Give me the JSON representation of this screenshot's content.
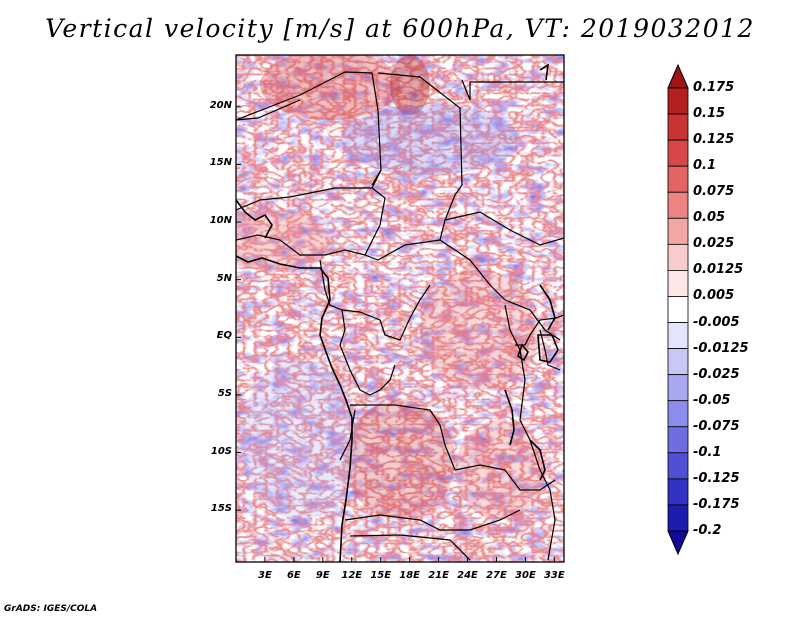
{
  "title": "Vertical velocity [m/s] at 600hPa, VT: 2019032012",
  "credit": "GrADS: IGES/COLA",
  "map": {
    "variable": "Vertical velocity",
    "units": "m/s",
    "level": "600hPa",
    "valid_time": "2019032012",
    "lat_range": [
      -19.5,
      24.5
    ],
    "lon_range": [
      0,
      34
    ],
    "lat_labels": [
      {
        "lat": 20,
        "text": "20N"
      },
      {
        "lat": 15,
        "text": "15N"
      },
      {
        "lat": 10,
        "text": "10N"
      },
      {
        "lat": 5,
        "text": "5N"
      },
      {
        "lat": 0,
        "text": "EQ"
      },
      {
        "lat": -5,
        "text": "5S"
      },
      {
        "lat": -10,
        "text": "10S"
      },
      {
        "lat": -15,
        "text": "15S"
      }
    ],
    "lon_labels": [
      {
        "lon": 3,
        "text": "3E"
      },
      {
        "lon": 6,
        "text": "6E"
      },
      {
        "lon": 9,
        "text": "9E"
      },
      {
        "lon": 12,
        "text": "12E"
      },
      {
        "lon": 15,
        "text": "15E"
      },
      {
        "lon": 18,
        "text": "18E"
      },
      {
        "lon": 21,
        "text": "21E"
      },
      {
        "lon": 24,
        "text": "24E"
      },
      {
        "lon": 27,
        "text": "27E"
      },
      {
        "lon": 30,
        "text": "30E"
      },
      {
        "lon": 33,
        "text": "33E"
      }
    ]
  },
  "colorbar": {
    "labels": [
      "0.175",
      "0.15",
      "0.125",
      "0.1",
      "0.075",
      "0.05",
      "0.025",
      "0.0125",
      "0.005",
      "-0.005",
      "-0.0125",
      "-0.025",
      "-0.05",
      "-0.075",
      "-0.1",
      "-0.125",
      "-0.175",
      "-0.2"
    ],
    "colors": [
      "#a01414",
      "#b42020",
      "#c83434",
      "#d84848",
      "#e46464",
      "#ec8484",
      "#f2a6a6",
      "#f8cccc",
      "#fce6e6",
      "#ffffff",
      "#e4e4fc",
      "#c8c8f8",
      "#a8a8f2",
      "#8c8cec",
      "#6e6ee2",
      "#5050d6",
      "#3232c4",
      "#1c1cae",
      "#100a96"
    ]
  }
}
